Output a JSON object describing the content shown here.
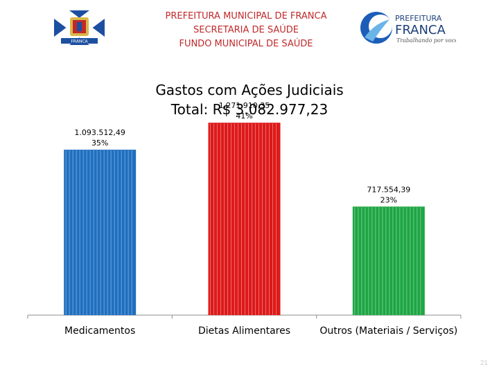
{
  "header": {
    "line1": "PREFEITURA MUNICIPAL DE FRANCA",
    "line2": "SECRETARIA DE SAÚDE",
    "line3": "FUNDO MUNICIPAL DE SAÚDE",
    "left_logo_text": "FRANCA",
    "right_logo_top": "PREFEITURA",
    "right_logo_main": "FRANCA",
    "right_logo_tagline": "Trabalhando por você"
  },
  "chart_data": {
    "type": "bar",
    "title": "Gastos com Ações Judiciais",
    "subtitle": "Total: R$ 3.082.977,23",
    "categories": [
      "Medicamentos",
      "Dietas Alimentares",
      "Outros (Materiais / Serviços)"
    ],
    "values": [
      1093512.49,
      1271910.35,
      717554.39
    ],
    "value_labels": [
      "1.093.512,49",
      "1.271.910,35",
      "717.554,39"
    ],
    "percent_labels": [
      "35%",
      "41%",
      "23%"
    ],
    "colors": [
      "#1f6fc0",
      "#dd1a1a",
      "#1fa544"
    ],
    "stripe_colors": [
      "#7fb0e0",
      "#f08080",
      "#7fd49a"
    ],
    "ylim": [
      0,
      1520000
    ],
    "grid": false,
    "legend": "none"
  },
  "page_number": "21"
}
